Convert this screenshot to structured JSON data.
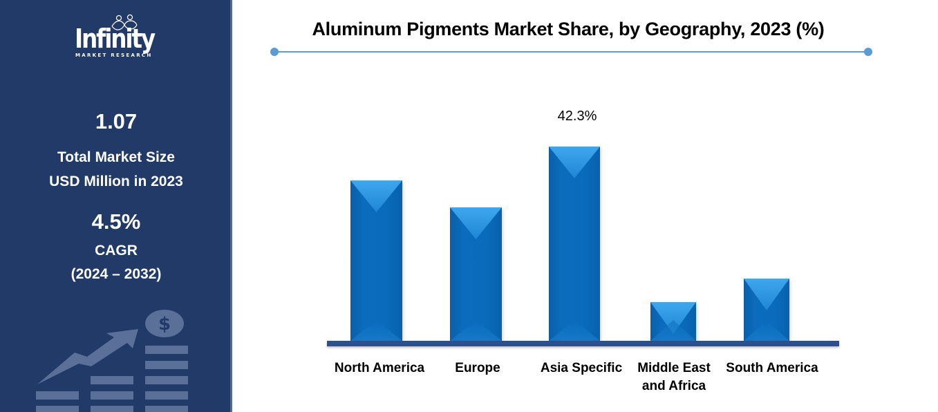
{
  "brand": {
    "name": "Infinity",
    "tagline": "MARKET RESEARCH",
    "logo_icon": "infinity-people-icon"
  },
  "sidebar": {
    "market_size": {
      "value": "1.07",
      "label_line1": "Total Market Size",
      "label_line2": "USD Million in 2023"
    },
    "cagr": {
      "value": "4.5%",
      "label_line1": "CAGR",
      "label_line2": "(2024 – 2032)"
    },
    "illustration_icon": "growth-chart-dollar-icon",
    "background_color": "#213a68",
    "illustration_color": "#5a7099"
  },
  "chart_data": {
    "type": "bar",
    "title": "Aluminum Pigments Market Share, by Geography, 2023 (%)",
    "categories": [
      "North America",
      "Europe",
      "Asia Specific",
      "Middle East and Africa",
      "South America"
    ],
    "category_labels_display": [
      "North America",
      "Europe",
      "Asia Specific",
      "Middle East\nand Africa",
      "South America"
    ],
    "values": [
      34.9,
      29.1,
      42.3,
      8.4,
      13.5
    ],
    "labeled_values": {
      "Asia Specific": "42.3%"
    },
    "data_label_shown": "42.3%",
    "xlabel": "",
    "ylabel": "",
    "ylim": [
      0,
      50
    ],
    "grid": false,
    "legend": "none",
    "bar_color": "#0b6cbd",
    "bar_highlight_color": "#3fa7ef",
    "baseline_color": "#2e4f8f",
    "title_rule_color": "#5b9bd5"
  }
}
